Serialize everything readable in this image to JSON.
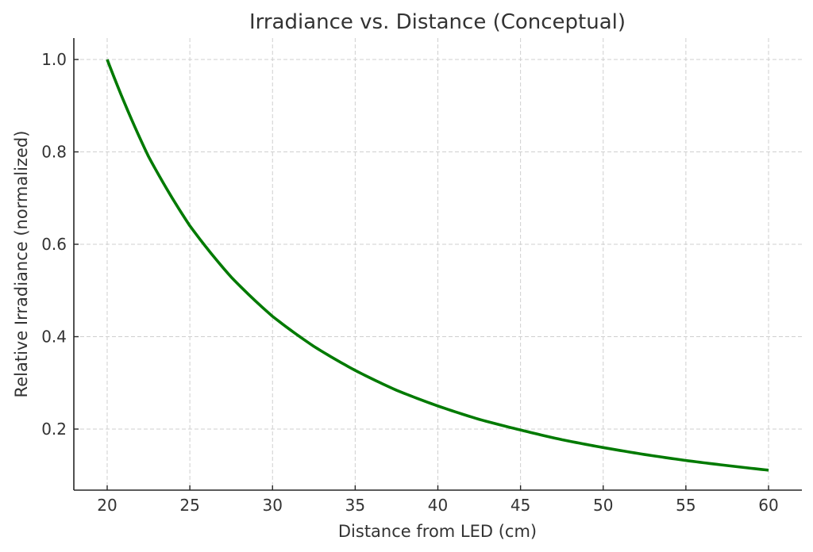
{
  "chart_data": {
    "type": "line",
    "title": "Irradiance vs. Distance (Conceptual)",
    "xlabel": "Distance from LED (cm)",
    "ylabel": "Relative Irradiance (normalized)",
    "xlim": [
      18,
      62
    ],
    "ylim": [
      0.07,
      1.05
    ],
    "xticks": [
      20,
      25,
      30,
      35,
      40,
      45,
      50,
      55,
      60
    ],
    "xtick_labels": [
      "20",
      "25",
      "30",
      "35",
      "40",
      "45",
      "50",
      "55",
      "60"
    ],
    "yticks": [
      0.2,
      0.4,
      0.6,
      0.8,
      1.0
    ],
    "ytick_labels": [
      "0.2",
      "0.4",
      "0.6",
      "0.8",
      "1.0"
    ],
    "grid": true,
    "series": [
      {
        "name": "Relative Irradiance",
        "color": "#007a00",
        "x": [
          20,
          22.5,
          25,
          27.5,
          30,
          32.5,
          35,
          37.5,
          40,
          42.5,
          45,
          47.5,
          50,
          52.5,
          55,
          57.5,
          60
        ],
        "y": [
          1.0,
          0.79,
          0.64,
          0.529,
          0.444,
          0.379,
          0.327,
          0.284,
          0.25,
          0.221,
          0.198,
          0.177,
          0.16,
          0.145,
          0.132,
          0.121,
          0.111
        ]
      }
    ]
  }
}
